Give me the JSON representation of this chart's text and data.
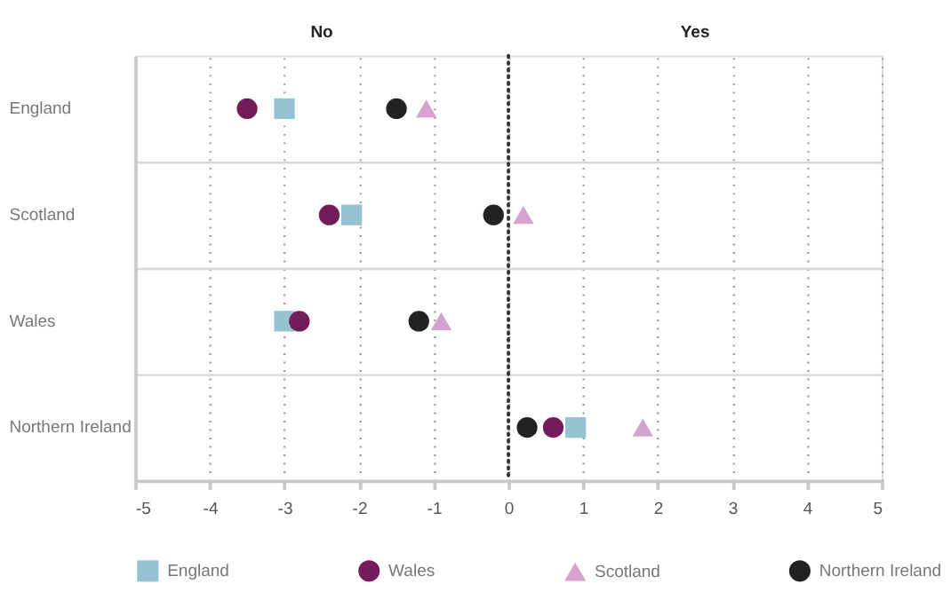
{
  "chart_data": {
    "type": "scatter",
    "orientation": "horizontal",
    "categories": [
      "England",
      "Scotland",
      "Wales",
      "Northern Ireland"
    ],
    "series": [
      {
        "name": "England",
        "color": "#96c3d1",
        "marker": "square",
        "values": [
          -3.0,
          -2.1,
          -3.0,
          0.9
        ]
      },
      {
        "name": "Wales",
        "color": "#741b5a",
        "marker": "circle",
        "values": [
          -3.5,
          -2.4,
          -2.8,
          0.6
        ]
      },
      {
        "name": "Scotland",
        "color": "#d6a3cc",
        "marker": "triangle",
        "values": [
          -1.1,
          0.2,
          -0.9,
          1.8
        ]
      },
      {
        "name": "Northern Ireland",
        "color": "#222222",
        "marker": "circle",
        "values": [
          -1.5,
          -0.2,
          -1.2,
          0.25
        ]
      }
    ],
    "xlim": [
      -5,
      5
    ],
    "xticks": [
      -5,
      -4,
      -3,
      -2,
      -1,
      0,
      1,
      2,
      3,
      4,
      5
    ],
    "grid": true,
    "legend": "bottom",
    "ref_lines": [
      {
        "axis": "x",
        "value": 0,
        "color": "#333333",
        "line_style": "dotted"
      }
    ],
    "annotations": [
      "No",
      "Yes"
    ]
  }
}
